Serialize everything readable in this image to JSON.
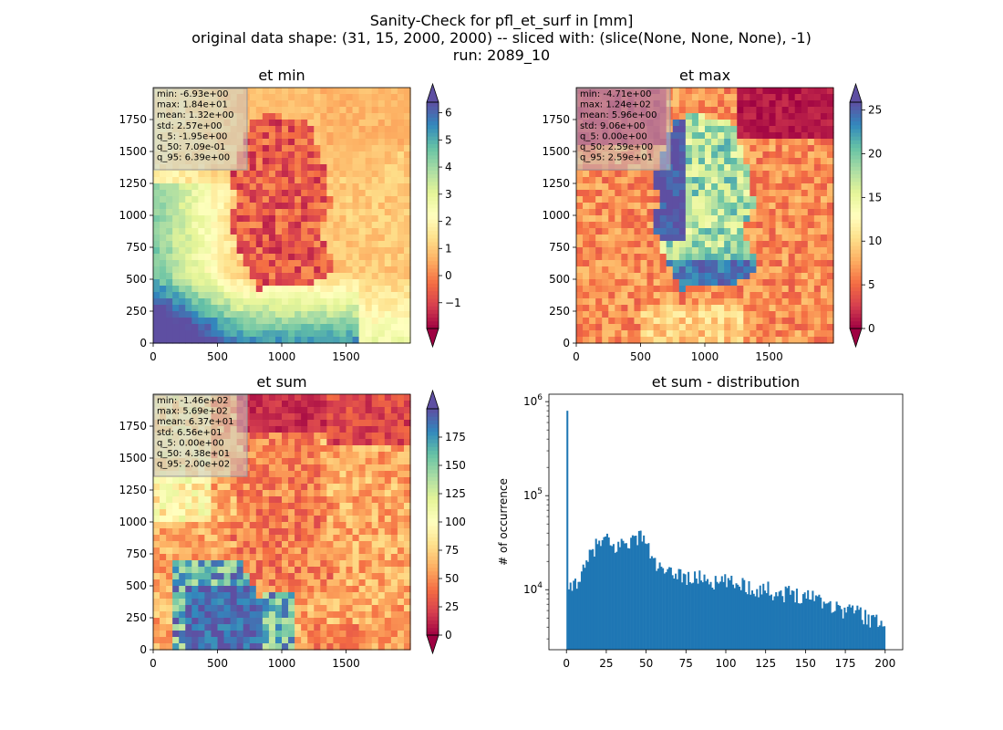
{
  "suptitle": {
    "line1": "Sanity-Check for pfl_et_surf in [mm]",
    "line2": "original data shape: (31, 15, 2000, 2000) -- sliced with: (slice(None, None, None), -1)",
    "line3": "run: 2089_10"
  },
  "colors": {
    "spectral": [
      "#9e0142",
      "#d53e4f",
      "#f46d43",
      "#fdae61",
      "#fee08b",
      "#ffffbf",
      "#e6f598",
      "#abdda4",
      "#66c2a5",
      "#3288bd",
      "#5e4fa2"
    ],
    "hist_bar": "#1f77b4",
    "stats_box": "#c9c9c9"
  },
  "chart_data": [
    {
      "type": "heatmap",
      "title": "et min",
      "colormap": "Spectral",
      "xticks": [
        "0",
        "500",
        "1000",
        "1500"
      ],
      "yticks": [
        "0",
        "250",
        "500",
        "750",
        "1000",
        "1250",
        "1500",
        "1750"
      ],
      "xlim": [
        0,
        2000
      ],
      "ylim": [
        0,
        2000
      ],
      "colorbar": {
        "ticks": [
          "−1",
          "0",
          "1",
          "2",
          "3",
          "4",
          "5",
          "6"
        ],
        "tick_values": [
          -1,
          0,
          1,
          2,
          3,
          4,
          5,
          6
        ],
        "range": [
          -1.95,
          6.39
        ],
        "extend": "both"
      },
      "stats": [
        "min: -6.93e+00",
        "max: 1.84e+01",
        "mean: 1.32e+00",
        "std: 2.57e+00",
        "q_5: -1.95e+00",
        "q_50: 7.09e-01",
        "q_95: 6.39e+00"
      ]
    },
    {
      "type": "heatmap",
      "title": "et max",
      "colormap": "Spectral",
      "xticks": [
        "0",
        "500",
        "1000",
        "1500"
      ],
      "yticks": [
        "0",
        "250",
        "500",
        "750",
        "1000",
        "1250",
        "1500",
        "1750"
      ],
      "xlim": [
        0,
        2000
      ],
      "ylim": [
        0,
        2000
      ],
      "colorbar": {
        "ticks": [
          "0",
          "5",
          "10",
          "15",
          "20",
          "25"
        ],
        "tick_values": [
          0,
          5,
          10,
          15,
          20,
          25
        ],
        "range": [
          0,
          25.9
        ],
        "extend": "both"
      },
      "stats": [
        "min: -4.71e+00",
        "max: 1.24e+02",
        "mean: 5.96e+00",
        "std: 9.06e+00",
        "q_5: 0.00e+00",
        "q_50: 2.59e+00",
        "q_95: 2.59e+01"
      ]
    },
    {
      "type": "heatmap",
      "title": "et sum",
      "colormap": "Spectral",
      "xticks": [
        "0",
        "500",
        "1000",
        "1500"
      ],
      "yticks": [
        "0",
        "250",
        "500",
        "750",
        "1000",
        "1250",
        "1500",
        "1750"
      ],
      "xlim": [
        0,
        2000
      ],
      "ylim": [
        0,
        2000
      ],
      "colorbar": {
        "ticks": [
          "0",
          "25",
          "50",
          "75",
          "100",
          "125",
          "150",
          "175"
        ],
        "tick_values": [
          0,
          25,
          50,
          75,
          100,
          125,
          150,
          175
        ],
        "range": [
          0,
          200
        ],
        "extend": "both"
      },
      "stats": [
        "min: -1.46e+02",
        "max: 5.69e+02",
        "mean: 6.37e+01",
        "std: 6.56e+01",
        "q_5: 0.00e+00",
        "q_50: 4.38e+01",
        "q_95: 2.00e+02"
      ]
    },
    {
      "type": "bar",
      "title": "et sum - distribution",
      "ylabel": "# of occurrence",
      "yscale": "log",
      "ylim": [
        2300,
        1200000
      ],
      "xlim": [
        -11,
        211
      ],
      "xticks": [
        0,
        25,
        50,
        75,
        100,
        125,
        150,
        175,
        200
      ],
      "yticks": [
        {
          "value": 10000,
          "base": "10",
          "exp": "4"
        },
        {
          "value": 100000,
          "base": "10",
          "exp": "5"
        },
        {
          "value": 1000000,
          "base": "10",
          "exp": "6"
        }
      ],
      "bin_range": [
        0,
        200
      ],
      "bin_count": 200,
      "anchor_points": [
        [
          0,
          800000
        ],
        [
          1,
          8500
        ],
        [
          3,
          10500
        ],
        [
          6,
          12500
        ],
        [
          9,
          14000
        ],
        [
          12,
          17000
        ],
        [
          15,
          24000
        ],
        [
          18,
          29000
        ],
        [
          22,
          32000
        ],
        [
          26,
          34000
        ],
        [
          29,
          27000
        ],
        [
          33,
          30000
        ],
        [
          38,
          33000
        ],
        [
          42,
          34000
        ],
        [
          46,
          37000
        ],
        [
          48,
          40000
        ],
        [
          52,
          25000
        ],
        [
          56,
          19000
        ],
        [
          60,
          15500
        ],
        [
          65,
          14500
        ],
        [
          70,
          15500
        ],
        [
          75,
          13500
        ],
        [
          80,
          13000
        ],
        [
          85,
          14000
        ],
        [
          90,
          12500
        ],
        [
          95,
          11500
        ],
        [
          100,
          12500
        ],
        [
          105,
          11500
        ],
        [
          110,
          12000
        ],
        [
          115,
          10500
        ],
        [
          120,
          10000
        ],
        [
          125,
          10500
        ],
        [
          130,
          9500
        ],
        [
          135,
          9000
        ],
        [
          140,
          9500
        ],
        [
          145,
          9000
        ],
        [
          150,
          8500
        ],
        [
          155,
          9000
        ],
        [
          160,
          8000
        ],
        [
          165,
          7000
        ],
        [
          170,
          6500
        ],
        [
          175,
          6000
        ],
        [
          180,
          6500
        ],
        [
          185,
          5500
        ],
        [
          190,
          5000
        ],
        [
          195,
          4500
        ],
        [
          199,
          5000
        ]
      ]
    }
  ]
}
